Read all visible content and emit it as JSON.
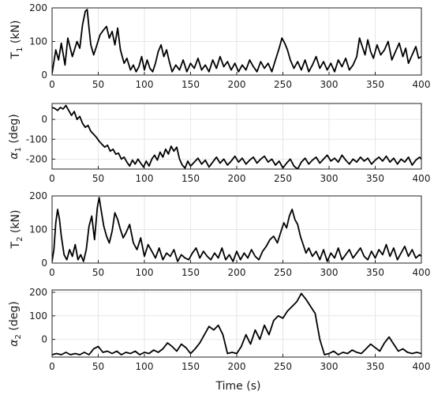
{
  "chart_data": [
    {
      "type": "line",
      "ylabel": {
        "main": "T",
        "sub": "1",
        "unit": " (kN)"
      },
      "xlabel": "",
      "xlim": [
        0,
        400
      ],
      "ylim": [
        0,
        200
      ],
      "xticks": [
        0,
        50,
        100,
        150,
        200,
        250,
        300,
        350,
        400
      ],
      "yticks": [
        0,
        100,
        200
      ],
      "grid": true,
      "series": [
        {
          "color": "#000000",
          "x": [
            0,
            4,
            7,
            10,
            14,
            17,
            22,
            27,
            30,
            33,
            36,
            38,
            40,
            42,
            45,
            48,
            52,
            56,
            59,
            62,
            65,
            68,
            71,
            74,
            78,
            81,
            85,
            88,
            91,
            94,
            97,
            100,
            103,
            106,
            109,
            112,
            115,
            118,
            121,
            124,
            127,
            130,
            134,
            138,
            142,
            146,
            150,
            154,
            158,
            162,
            166,
            170,
            174,
            178,
            182,
            186,
            190,
            194,
            198,
            202,
            206,
            210,
            214,
            218,
            222,
            226,
            230,
            234,
            238,
            242,
            246,
            249,
            252,
            255,
            258,
            262,
            266,
            270,
            274,
            278,
            282,
            286,
            290,
            294,
            298,
            302,
            306,
            310,
            314,
            318,
            322,
            326,
            330,
            333,
            336,
            339,
            342,
            345,
            348,
            352,
            356,
            360,
            364,
            368,
            372,
            376,
            380,
            383,
            386,
            390,
            394,
            397,
            400
          ],
          "y": [
            5,
            75,
            45,
            95,
            30,
            110,
            55,
            100,
            80,
            150,
            190,
            195,
            140,
            90,
            60,
            85,
            120,
            135,
            145,
            110,
            130,
            90,
            140,
            75,
            35,
            50,
            15,
            30,
            10,
            25,
            55,
            15,
            45,
            20,
            10,
            35,
            70,
            90,
            55,
            75,
            40,
            10,
            30,
            15,
            45,
            10,
            35,
            20,
            50,
            15,
            30,
            10,
            45,
            20,
            55,
            25,
            40,
            15,
            35,
            10,
            30,
            15,
            45,
            25,
            10,
            40,
            20,
            35,
            10,
            45,
            80,
            110,
            95,
            75,
            45,
            20,
            40,
            15,
            45,
            10,
            30,
            55,
            20,
            40,
            15,
            35,
            10,
            45,
            25,
            50,
            15,
            30,
            55,
            110,
            85,
            60,
            105,
            70,
            50,
            90,
            60,
            75,
            100,
            45,
            70,
            95,
            55,
            80,
            35,
            60,
            85,
            50,
            55
          ]
        }
      ]
    },
    {
      "type": "line",
      "ylabel": {
        "main": "α",
        "sub": "1",
        "unit": " (deg)"
      },
      "xlabel": "",
      "xlim": [
        0,
        400
      ],
      "ylim": [
        -250,
        80
      ],
      "xticks": [
        0,
        50,
        100,
        150,
        200,
        250,
        300,
        350,
        400
      ],
      "yticks": [
        0,
        -100,
        -200
      ],
      "ytick_labels": [
        "0",
        "-100",
        "-200"
      ],
      "grid": true,
      "series": [
        {
          "color": "#000000",
          "x": [
            0,
            3,
            6,
            9,
            12,
            15,
            18,
            21,
            24,
            27,
            30,
            33,
            36,
            39,
            42,
            45,
            48,
            51,
            54,
            57,
            60,
            63,
            66,
            69,
            72,
            75,
            78,
            81,
            84,
            87,
            90,
            93,
            96,
            99,
            102,
            105,
            108,
            111,
            114,
            117,
            120,
            123,
            126,
            129,
            132,
            135,
            138,
            141,
            144,
            147,
            150,
            154,
            158,
            162,
            166,
            170,
            174,
            178,
            182,
            186,
            190,
            194,
            198,
            202,
            206,
            210,
            214,
            218,
            222,
            226,
            230,
            234,
            238,
            242,
            246,
            250,
            254,
            258,
            262,
            266,
            270,
            274,
            278,
            282,
            286,
            290,
            294,
            298,
            302,
            306,
            310,
            314,
            318,
            322,
            326,
            330,
            334,
            338,
            342,
            346,
            350,
            354,
            358,
            362,
            366,
            370,
            374,
            378,
            382,
            386,
            390,
            394,
            398,
            400
          ],
          "y": [
            60,
            55,
            45,
            60,
            52,
            70,
            45,
            20,
            40,
            0,
            15,
            -20,
            -40,
            -30,
            -60,
            -75,
            -90,
            -110,
            -125,
            -140,
            -130,
            -160,
            -150,
            -175,
            -170,
            -200,
            -190,
            -215,
            -235,
            -205,
            -225,
            -200,
            -220,
            -240,
            -210,
            -235,
            -200,
            -180,
            -205,
            -165,
            -190,
            -150,
            -175,
            -135,
            -160,
            -140,
            -200,
            -230,
            -245,
            -210,
            -235,
            -215,
            -195,
            -225,
            -205,
            -240,
            -215,
            -190,
            -220,
            -200,
            -230,
            -210,
            -185,
            -215,
            -195,
            -225,
            -205,
            -190,
            -220,
            -200,
            -185,
            -215,
            -200,
            -230,
            -210,
            -245,
            -220,
            -200,
            -235,
            -250,
            -215,
            -195,
            -225,
            -205,
            -190,
            -220,
            -200,
            -180,
            -210,
            -195,
            -215,
            -180,
            -205,
            -225,
            -200,
            -215,
            -190,
            -210,
            -195,
            -225,
            -205,
            -190,
            -210,
            -185,
            -215,
            -195,
            -225,
            -200,
            -215,
            -190,
            -230,
            -205,
            -190,
            -200
          ]
        }
      ]
    },
    {
      "type": "line",
      "ylabel": {
        "main": "T",
        "sub": "2",
        "unit": " (kN)"
      },
      "xlabel": "",
      "xlim": [
        0,
        400
      ],
      "ylim": [
        0,
        200
      ],
      "xticks": [
        0,
        50,
        100,
        150,
        200,
        250,
        300,
        350,
        400
      ],
      "yticks": [
        0,
        100,
        200
      ],
      "grid": true,
      "series": [
        {
          "color": "#000000",
          "x": [
            0,
            2,
            4,
            6,
            8,
            10,
            13,
            16,
            19,
            22,
            25,
            28,
            31,
            34,
            37,
            40,
            43,
            46,
            49,
            51,
            53,
            56,
            59,
            62,
            65,
            68,
            71,
            74,
            77,
            80,
            84,
            88,
            92,
            96,
            100,
            104,
            108,
            112,
            116,
            120,
            124,
            128,
            132,
            136,
            140,
            144,
            148,
            152,
            156,
            160,
            164,
            168,
            172,
            176,
            180,
            184,
            188,
            192,
            196,
            200,
            204,
            208,
            212,
            216,
            220,
            224,
            228,
            232,
            236,
            240,
            244,
            248,
            251,
            254,
            257,
            260,
            263,
            266,
            269,
            272,
            275,
            278,
            282,
            286,
            290,
            294,
            298,
            302,
            306,
            310,
            314,
            318,
            322,
            326,
            330,
            334,
            338,
            342,
            346,
            350,
            354,
            358,
            362,
            366,
            370,
            374,
            378,
            382,
            386,
            390,
            394,
            398,
            400
          ],
          "y": [
            5,
            40,
            120,
            160,
            130,
            80,
            25,
            10,
            40,
            20,
            55,
            10,
            25,
            5,
            40,
            110,
            140,
            70,
            165,
            195,
            160,
            110,
            80,
            60,
            95,
            150,
            130,
            100,
            75,
            90,
            115,
            60,
            40,
            75,
            20,
            55,
            35,
            15,
            45,
            10,
            30,
            20,
            40,
            5,
            25,
            15,
            10,
            30,
            45,
            15,
            35,
            20,
            10,
            30,
            15,
            45,
            10,
            25,
            5,
            35,
            10,
            30,
            15,
            40,
            20,
            10,
            35,
            50,
            70,
            80,
            60,
            95,
            120,
            105,
            140,
            160,
            130,
            115,
            80,
            55,
            30,
            45,
            20,
            35,
            10,
            40,
            5,
            30,
            15,
            45,
            10,
            25,
            40,
            15,
            30,
            45,
            20,
            10,
            35,
            15,
            40,
            25,
            55,
            20,
            45,
            10,
            30,
            50,
            20,
            40,
            15,
            25,
            20
          ]
        }
      ]
    },
    {
      "type": "line",
      "ylabel": {
        "main": "α",
        "sub": "2",
        "unit": " (deg)"
      },
      "xlabel": "Time (s)",
      "xlim": [
        0,
        400
      ],
      "ylim": [
        -75,
        210
      ],
      "xticks": [
        0,
        50,
        100,
        150,
        200,
        250,
        300,
        350,
        400
      ],
      "yticks": [
        0,
        100,
        200
      ],
      "grid": true,
      "series": [
        {
          "color": "#000000",
          "x": [
            0,
            5,
            10,
            15,
            20,
            25,
            30,
            35,
            40,
            45,
            50,
            55,
            60,
            65,
            70,
            75,
            80,
            85,
            90,
            95,
            100,
            105,
            110,
            115,
            120,
            125,
            130,
            135,
            140,
            145,
            150,
            155,
            160,
            165,
            170,
            175,
            180,
            185,
            190,
            195,
            200,
            205,
            210,
            215,
            220,
            225,
            230,
            235,
            240,
            245,
            250,
            255,
            260,
            265,
            270,
            275,
            280,
            285,
            290,
            295,
            300,
            305,
            310,
            315,
            320,
            325,
            330,
            335,
            340,
            345,
            350,
            355,
            360,
            365,
            370,
            375,
            380,
            385,
            390,
            395,
            400
          ],
          "y": [
            -65,
            -60,
            -65,
            -55,
            -65,
            -60,
            -65,
            -55,
            -65,
            -40,
            -30,
            -55,
            -50,
            -60,
            -50,
            -65,
            -55,
            -60,
            -50,
            -65,
            -55,
            -60,
            -45,
            -55,
            -40,
            -15,
            -30,
            -50,
            -20,
            -35,
            -60,
            -40,
            -15,
            20,
            55,
            40,
            60,
            20,
            -60,
            -55,
            -60,
            -30,
            20,
            -20,
            40,
            0,
            60,
            20,
            80,
            100,
            90,
            120,
            140,
            160,
            195,
            170,
            140,
            110,
            0,
            -65,
            -60,
            -50,
            -65,
            -55,
            -60,
            -45,
            -55,
            -60,
            -40,
            -20,
            -35,
            -50,
            -15,
            10,
            -20,
            -50,
            -40,
            -55,
            -60,
            -55,
            -60
          ]
        }
      ]
    }
  ]
}
